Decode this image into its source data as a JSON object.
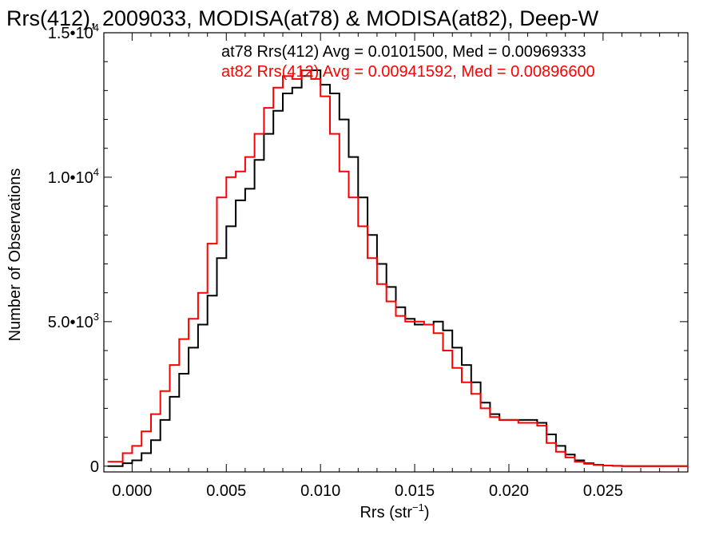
{
  "chart_data": {
    "type": "line",
    "title": "Rrs(412), 2009033, MODISA(at78) & MODISA(at82), Deep-W",
    "xlabel": "Rrs (str",
    "xlabel_sup": "−1",
    "xlabel_close": ")",
    "ylabel": "Number of Observations",
    "xlim": [
      -0.0015,
      0.0295
    ],
    "ylim": [
      -200,
      15000
    ],
    "x_ticks": [
      {
        "value": 0.0,
        "label": "0.000"
      },
      {
        "value": 0.005,
        "label": "0.005"
      },
      {
        "value": 0.01,
        "label": "0.010"
      },
      {
        "value": 0.015,
        "label": "0.015"
      },
      {
        "value": 0.02,
        "label": "0.020"
      },
      {
        "value": 0.025,
        "label": "0.025"
      }
    ],
    "y_ticks": [
      {
        "value": 0,
        "label": "0",
        "sup": ""
      },
      {
        "value": 5000,
        "label": "5.0•10",
        "sup": "3"
      },
      {
        "value": 10000,
        "label": "1.0•10",
        "sup": "4"
      },
      {
        "value": 15000,
        "label": "1.5•10",
        "sup": "4"
      }
    ],
    "legend": [
      {
        "text": "at78 Rrs(412) Avg = 0.0101500, Med = 0.00969333",
        "color": "#000000"
      },
      {
        "text": "at82 Rrs(412) Avg = 0.00941592, Med = 0.00896600",
        "color": "#ff0000"
      }
    ],
    "series": [
      {
        "name": "at78",
        "color": "#000000",
        "x": [
          -0.0013,
          -0.0005,
          0.0,
          0.0005,
          0.001,
          0.0015,
          0.002,
          0.0025,
          0.003,
          0.0035,
          0.004,
          0.0045,
          0.005,
          0.0055,
          0.006,
          0.0065,
          0.007,
          0.0075,
          0.008,
          0.0085,
          0.009,
          0.0095,
          0.01,
          0.0105,
          0.011,
          0.0115,
          0.012,
          0.0125,
          0.013,
          0.0135,
          0.014,
          0.0145,
          0.015,
          0.0155,
          0.016,
          0.0165,
          0.017,
          0.0175,
          0.018,
          0.0185,
          0.019,
          0.0195,
          0.02,
          0.0205,
          0.021,
          0.0215,
          0.022,
          0.0225,
          0.023,
          0.0235,
          0.024,
          0.0245,
          0.025,
          0.0255,
          0.026,
          0.027,
          0.028
        ],
        "y": [
          0,
          100,
          200,
          450,
          900,
          1600,
          2400,
          3200,
          4100,
          4900,
          5900,
          7200,
          8300,
          9200,
          9600,
          10600,
          11500,
          12300,
          12900,
          13100,
          13500,
          13700,
          13200,
          12900,
          12000,
          10700,
          9300,
          8000,
          7000,
          6200,
          5500,
          5100,
          4900,
          4900,
          5000,
          4700,
          4100,
          3500,
          2900,
          2200,
          1800,
          1600,
          1600,
          1600,
          1600,
          1500,
          1100,
          700,
          400,
          200,
          100,
          50,
          20,
          10,
          0,
          0,
          0
        ]
      },
      {
        "name": "at82",
        "color": "#ff0000",
        "x": [
          -0.0013,
          -0.0005,
          0.0,
          0.0005,
          0.001,
          0.0015,
          0.002,
          0.0025,
          0.003,
          0.0035,
          0.004,
          0.0045,
          0.005,
          0.0055,
          0.006,
          0.0065,
          0.007,
          0.0075,
          0.008,
          0.0085,
          0.009,
          0.0095,
          0.01,
          0.0105,
          0.011,
          0.0115,
          0.012,
          0.0125,
          0.013,
          0.0135,
          0.014,
          0.0145,
          0.015,
          0.0155,
          0.016,
          0.0165,
          0.017,
          0.0175,
          0.018,
          0.0185,
          0.019,
          0.0195,
          0.02,
          0.0205,
          0.021,
          0.0215,
          0.022,
          0.0225,
          0.023,
          0.0235,
          0.024,
          0.0245,
          0.025,
          0.0255,
          0.026,
          0.027,
          0.028
        ],
        "y": [
          150,
          450,
          700,
          1200,
          1800,
          2600,
          3500,
          4400,
          5100,
          6000,
          7700,
          9300,
          10000,
          10200,
          10700,
          11500,
          12400,
          13100,
          13500,
          13400,
          13700,
          13400,
          12800,
          11500,
          10200,
          9300,
          8300,
          7200,
          6300,
          5700,
          5200,
          5000,
          5000,
          4900,
          4600,
          4000,
          3400,
          2900,
          2500,
          2000,
          1700,
          1600,
          1600,
          1500,
          1500,
          1400,
          800,
          500,
          300,
          150,
          80,
          40,
          20,
          10,
          0,
          0,
          0
        ]
      }
    ]
  }
}
